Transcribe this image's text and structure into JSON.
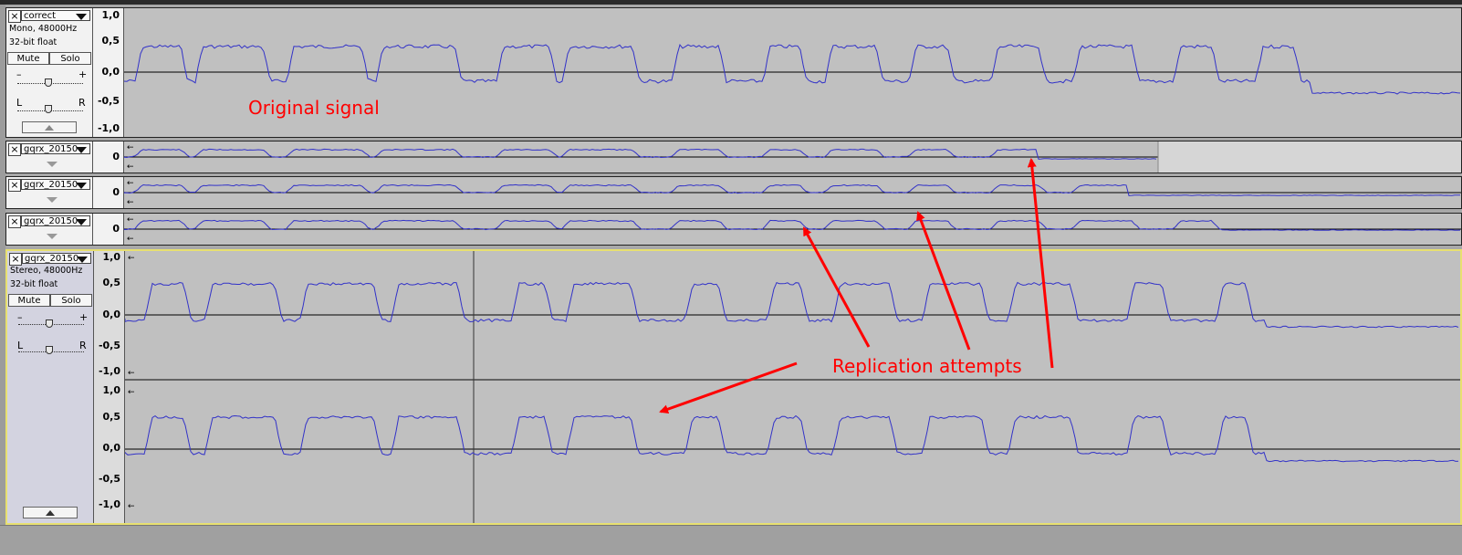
{
  "tracks": [
    {
      "name": "correct",
      "format": "Mono, 48000Hz",
      "sample_format": "32-bit float",
      "mute_label": "Mute",
      "solo_label": "Solo",
      "gain_minus": "–",
      "gain_plus": "+",
      "pan_left": "L",
      "pan_right": "R",
      "scale": [
        "1,0",
        "0,5",
        "0,0",
        "-0,5",
        "-1,0"
      ]
    },
    {
      "name": "gqrx_20150",
      "scale": [
        "0"
      ],
      "arrow_glyph": "←"
    },
    {
      "name": "gqrx_20150",
      "scale": [
        "0"
      ],
      "arrow_glyph": "←"
    },
    {
      "name": "gqrx_20150",
      "scale": [
        "0"
      ],
      "arrow_glyph": "←"
    },
    {
      "name": "gqrx_20150",
      "format": "Stereo, 48000Hz",
      "sample_format": "32-bit float",
      "mute_label": "Mute",
      "solo_label": "Solo",
      "gain_minus": "–",
      "gain_plus": "+",
      "pan_left": "L",
      "pan_right": "R",
      "scale": [
        "1,0",
        "0,5",
        "0,0",
        "-0,5",
        "-1,0"
      ],
      "arrow_glyph": "←"
    }
  ],
  "annotations": {
    "original": "Original signal",
    "replication": "Replication attempts"
  },
  "colors": {
    "waveform": "#3232c8",
    "annotation": "#ff0000",
    "selection_border": "#e8e070"
  },
  "icons": {
    "close": "close-icon",
    "menu": "dropdown-arrow-icon",
    "collapse": "collapse-icon"
  }
}
